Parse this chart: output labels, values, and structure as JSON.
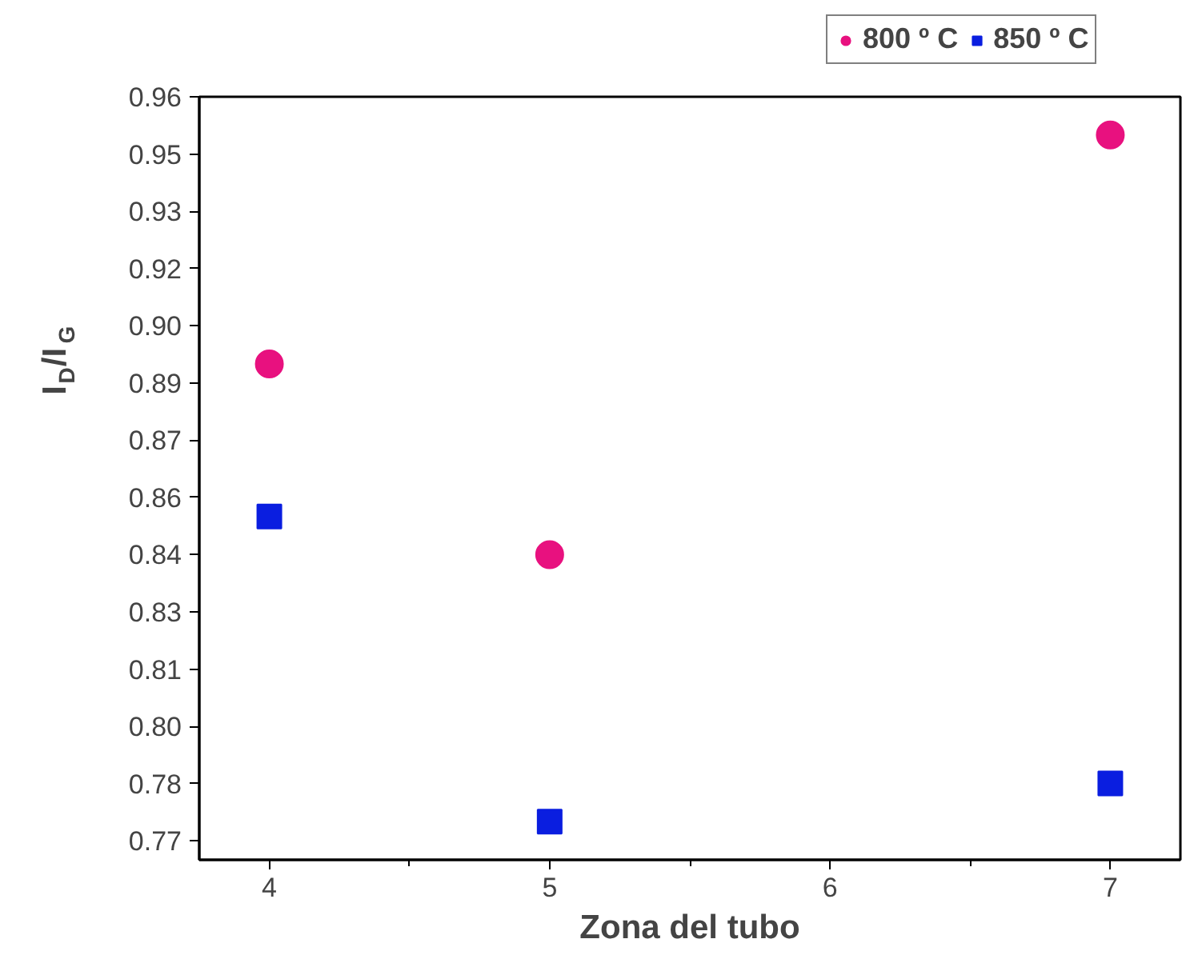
{
  "chart_data": {
    "type": "scatter",
    "xlabel": "Zona del tubo",
    "ylabel": "I$_{D}$/I$_{G}$",
    "x": [
      4,
      5,
      7
    ],
    "series": [
      {
        "name": "800 º C",
        "color": "#e8117f",
        "marker": "circle",
        "values": [
          0.89,
          0.84,
          0.95
        ]
      },
      {
        "name": "850 º C",
        "color": "#0a1ee0",
        "marker": "square",
        "values": [
          0.85,
          0.77,
          0.78
        ]
      }
    ],
    "xlim": [
      3.75,
      7.25
    ],
    "xticks": [
      4,
      5,
      6,
      7
    ],
    "ylim": [
      0.76,
      0.96
    ],
    "yticks": [
      {
        "value": 0.765,
        "label": "0.77"
      },
      0.78,
      {
        "value": 0.795,
        "label": "0.80"
      },
      0.81,
      {
        "value": 0.825,
        "label": "0.83"
      },
      0.84,
      {
        "value": 0.855,
        "label": "0.86"
      },
      0.87,
      {
        "value": 0.885,
        "label": "0.89"
      },
      {
        "value": 0.9,
        "label": "0.90"
      },
      {
        "value": 0.915,
        "label": "0.92"
      },
      0.93,
      {
        "value": 0.945,
        "label": "0.95"
      },
      0.96
    ],
    "grid": false,
    "legend": "top right"
  }
}
